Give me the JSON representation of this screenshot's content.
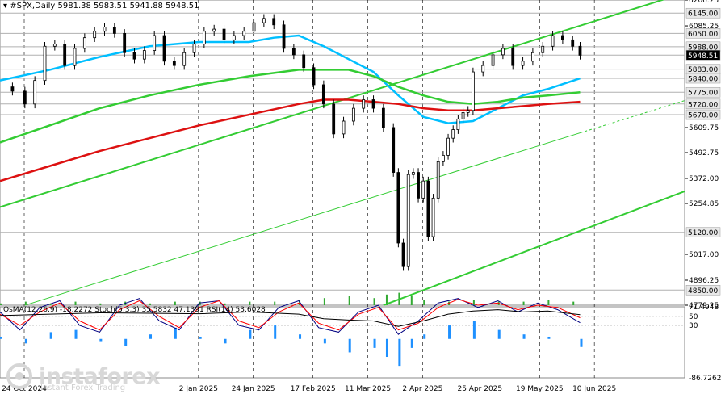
{
  "header": {
    "symbol": "#SPX,Daily",
    "ohlc": "5981.38 5983.51 5941.88 5948.51"
  },
  "indicators": {
    "label": "OsMA(12,26,9) -18.2272 Stoch(5,3,3) 35.5832 47.1391 RSI(14) 53.6028"
  },
  "watermark": {
    "brand": "instaforex",
    "tagline": "Instant Forex Trading"
  },
  "chart_data": {
    "type": "line",
    "instrument": "#SPX",
    "timeframe": "Daily",
    "ohlc_last": {
      "open": 5981.38,
      "high": 5983.51,
      "low": 5941.88,
      "close": 5948.51
    },
    "x_labels": [
      "24 Oct 2024",
      "2 Jan 2025",
      "24 Jan 2025",
      "17 Feb 2025",
      "11 Mar 2025",
      "2 Apr 2025",
      "25 Apr 2025",
      "19 May 2025",
      "10 Jun 2025"
    ],
    "x_label_days": [
      0,
      70,
      92,
      116,
      138,
      160,
      183,
      207,
      229
    ],
    "y_ticks": [
      6206.25,
      6085.25,
      5609.75,
      5492.75,
      5372.0,
      5254.85,
      5017.0,
      4896.25,
      4779.25
    ],
    "y_range": [
      4779.25,
      6206.25
    ],
    "levels": [
      {
        "label": "6145.00",
        "value": 6145
      },
      {
        "label": "6050.00",
        "value": 6050
      },
      {
        "label": "5988.00",
        "value": 5988
      },
      {
        "label": "5948.51",
        "value": 5948.51,
        "current": true
      },
      {
        "label": "5883.00",
        "value": 5883
      },
      {
        "label": "5840.00",
        "value": 5840
      },
      {
        "label": "5775.00",
        "value": 5775
      },
      {
        "label": "5720.00",
        "value": 5720
      },
      {
        "label": "5670.00",
        "value": 5670
      },
      {
        "label": "5120.00",
        "value": 5120
      },
      {
        "label": "4850.00",
        "value": 4850
      }
    ],
    "price": {
      "days": [
        0,
        5,
        10,
        14,
        18,
        22,
        26,
        30,
        34,
        38,
        42,
        46,
        50,
        54,
        58,
        62,
        66,
        70,
        74,
        78,
        82,
        86,
        90,
        94,
        98,
        102,
        106,
        110,
        114,
        118,
        122,
        126,
        130,
        134,
        138,
        142,
        146,
        150,
        154,
        158,
        160,
        162,
        164,
        166,
        168,
        170,
        172,
        174,
        176,
        178,
        180,
        182,
        184,
        186,
        188,
        190,
        194,
        198,
        202,
        206,
        210,
        214,
        218,
        222,
        226,
        230,
        233
      ],
      "close": [
        5800,
        5780,
        5720,
        5830,
        5990,
        6000,
        5900,
        5980,
        6030,
        6060,
        6080,
        6050,
        5960,
        5930,
        5970,
        6040,
        5920,
        5900,
        5960,
        6000,
        6060,
        6070,
        6020,
        6040,
        6060,
        6100,
        6120,
        6090,
        5980,
        5950,
        5890,
        5810,
        5720,
        5580,
        5640,
        5700,
        5740,
        5700,
        5610,
        5400,
        5070,
        4960,
        5390,
        5400,
        5280,
        5360,
        5100,
        5280,
        5450,
        5480,
        5560,
        5600,
        5650,
        5680,
        5690,
        5870,
        5900,
        5950,
        5980,
        5900,
        5920,
        5960,
        5990,
        6040,
        6020,
        5990,
        5948
      ]
    },
    "series": [
      {
        "name": "MA 50",
        "color": "#00bfff",
        "days": [
          0,
          20,
          40,
          60,
          80,
          100,
          110,
          120,
          130,
          140,
          150,
          160,
          170,
          180,
          190,
          200,
          210,
          220,
          233
        ],
        "values": [
          5830,
          5880,
          5940,
          5990,
          6010,
          6010,
          6030,
          6040,
          5990,
          5930,
          5870,
          5760,
          5660,
          5630,
          5640,
          5700,
          5760,
          5790,
          5840
        ]
      },
      {
        "name": "MA 100",
        "color": "#33cc33",
        "days": [
          0,
          20,
          40,
          60,
          80,
          100,
          120,
          140,
          150,
          160,
          170,
          180,
          190,
          200,
          210,
          220,
          233
        ],
        "values": [
          5540,
          5620,
          5700,
          5760,
          5810,
          5850,
          5880,
          5880,
          5850,
          5800,
          5760,
          5730,
          5720,
          5730,
          5750,
          5760,
          5775
        ]
      },
      {
        "name": "MA 200",
        "color": "#dd1111",
        "days": [
          0,
          20,
          40,
          60,
          80,
          100,
          120,
          130,
          140,
          150,
          160,
          170,
          180,
          190,
          200,
          210,
          220,
          233
        ],
        "values": [
          5360,
          5430,
          5500,
          5560,
          5620,
          5670,
          5720,
          5740,
          5740,
          5730,
          5720,
          5700,
          5690,
          5690,
          5700,
          5710,
          5720,
          5730
        ]
      }
    ],
    "channel_lines": [
      {
        "name": "upper channel",
        "style": "solid",
        "days": [
          0,
          233
        ],
        "values": [
          5238,
          6086
        ]
      },
      {
        "name": "upper channel ext",
        "style": "solid",
        "days": [
          233,
          270
        ],
        "values": [
          6086,
          6221
        ]
      },
      {
        "name": "mid channel",
        "style": "solid",
        "days": [
          10,
          233
        ],
        "values": [
          4779,
          5585
        ]
      },
      {
        "name": "mid channel ext",
        "style": "dashed",
        "days": [
          233,
          275
        ],
        "values": [
          5585,
          5736
        ]
      },
      {
        "name": "lower channel",
        "style": "solid",
        "days": [
          154,
          275
        ],
        "values": [
          4779,
          5312
        ]
      }
    ],
    "volume_days": [
      0,
      10,
      20,
      30,
      40,
      50,
      60,
      70,
      80,
      90,
      100,
      110,
      120,
      130,
      140,
      150,
      155,
      160,
      165,
      170,
      180,
      190,
      200,
      210,
      220,
      230
    ],
    "volume_values": [
      1,
      2,
      1,
      2,
      1,
      2,
      1,
      2,
      2,
      1,
      2,
      2,
      3,
      4,
      5,
      4,
      6,
      7,
      5,
      3,
      2,
      3,
      2,
      2,
      3,
      2
    ],
    "oscillator": {
      "osma": -18.2272,
      "stoch_k": 35.5832,
      "stoch_d": 47.1391,
      "rsi": 53.6028,
      "y_ticks": [
        71.4948,
        50,
        30,
        -86.7262
      ],
      "osma_days": [
        0,
        10,
        20,
        30,
        40,
        50,
        60,
        70,
        80,
        90,
        100,
        110,
        120,
        130,
        140,
        150,
        155,
        160,
        165,
        170,
        180,
        190,
        200,
        210,
        220,
        233
      ],
      "osma_values": [
        5,
        -10,
        15,
        20,
        -5,
        -15,
        10,
        25,
        5,
        -10,
        20,
        30,
        10,
        -10,
        -30,
        -20,
        -40,
        -60,
        -20,
        10,
        30,
        40,
        20,
        10,
        5,
        -18
      ],
      "stoch_days": [
        0,
        8,
        16,
        24,
        32,
        40,
        48,
        56,
        64,
        72,
        80,
        88,
        96,
        104,
        112,
        120,
        128,
        136,
        144,
        152,
        160,
        168,
        176,
        184,
        192,
        200,
        208,
        216,
        224,
        233
      ],
      "stoch_k_values": [
        60,
        20,
        70,
        85,
        30,
        15,
        75,
        90,
        40,
        20,
        80,
        85,
        30,
        20,
        70,
        85,
        25,
        15,
        60,
        75,
        10,
        40,
        80,
        90,
        70,
        85,
        60,
        80,
        65,
        36
      ],
      "stoch_d_values": [
        55,
        30,
        60,
        80,
        40,
        20,
        65,
        85,
        50,
        25,
        70,
        85,
        40,
        25,
        60,
        80,
        35,
        20,
        55,
        70,
        20,
        35,
        70,
        88,
        75,
        80,
        65,
        75,
        70,
        47
      ],
      "rsi_days": [
        0,
        20,
        40,
        60,
        80,
        100,
        120,
        130,
        140,
        150,
        160,
        170,
        180,
        190,
        200,
        210,
        220,
        233
      ],
      "rsi_values": [
        52,
        55,
        58,
        57,
        56,
        60,
        55,
        45,
        42,
        40,
        28,
        40,
        55,
        62,
        65,
        60,
        62,
        54
      ]
    }
  },
  "colors": {
    "candle": "#000000",
    "ma50": "#00bfff",
    "ma100": "#33cc33",
    "ma200": "#dd1111",
    "channel": "#33cc33",
    "volume": "#33aa33",
    "osma_bar": "#1e90ff",
    "stoch_k": "#000080",
    "stoch_d": "#ff0000",
    "rsi": "#000000",
    "level_line": "#b0b0b0"
  }
}
